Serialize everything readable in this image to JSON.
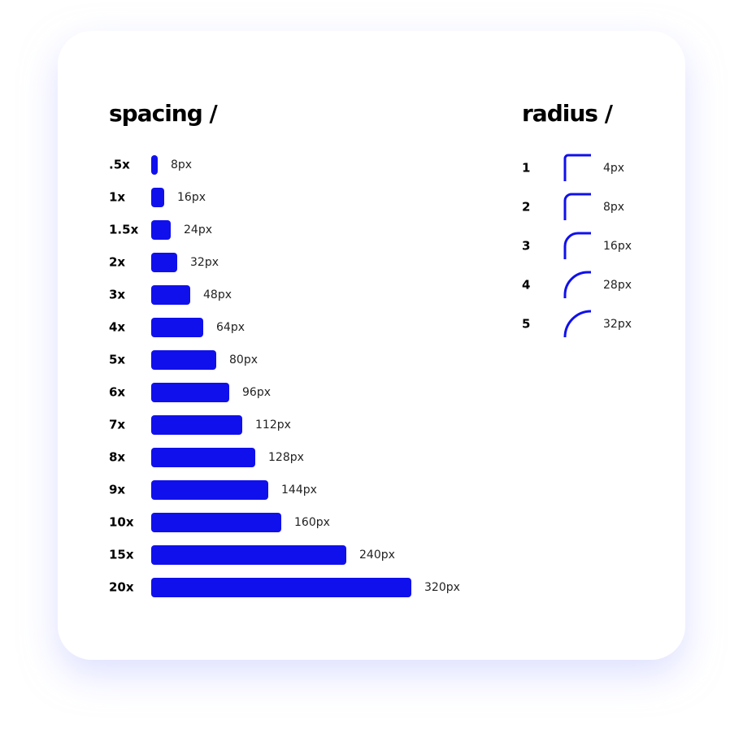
{
  "spacing": {
    "title": "spacing /",
    "color": "#1010ec",
    "items": [
      {
        "label": ".5x",
        "value": 8,
        "value_label": "8px"
      },
      {
        "label": "1x",
        "value": 16,
        "value_label": "16px"
      },
      {
        "label": "1.5x",
        "value": 24,
        "value_label": "24px"
      },
      {
        "label": "2x",
        "value": 32,
        "value_label": "32px"
      },
      {
        "label": "3x",
        "value": 48,
        "value_label": "48px"
      },
      {
        "label": "4x",
        "value": 64,
        "value_label": "64px"
      },
      {
        "label": "5x",
        "value": 80,
        "value_label": "80px"
      },
      {
        "label": "6x",
        "value": 96,
        "value_label": "96px"
      },
      {
        "label": "7x",
        "value": 112,
        "value_label": "112px"
      },
      {
        "label": "8x",
        "value": 128,
        "value_label": "128px"
      },
      {
        "label": "9x",
        "value": 144,
        "value_label": "144px"
      },
      {
        "label": "10x",
        "value": 160,
        "value_label": "160px"
      },
      {
        "label": "15x",
        "value": 240,
        "value_label": "240px"
      },
      {
        "label": "20x",
        "value": 320,
        "value_label": "320px"
      }
    ]
  },
  "radius": {
    "title": "radius /",
    "color": "#1010ec",
    "items": [
      {
        "label": "1",
        "value": 4,
        "value_label": "4px"
      },
      {
        "label": "2",
        "value": 8,
        "value_label": "8px"
      },
      {
        "label": "3",
        "value": 16,
        "value_label": "16px"
      },
      {
        "label": "4",
        "value": 28,
        "value_label": "28px"
      },
      {
        "label": "5",
        "value": 32,
        "value_label": "32px"
      }
    ]
  }
}
